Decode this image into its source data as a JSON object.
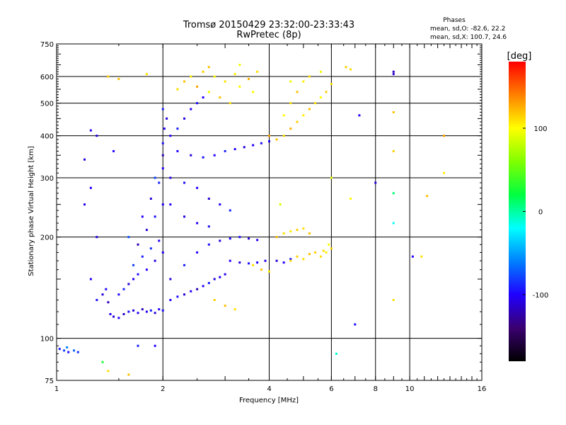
{
  "chart_data": {
    "type": "scatter",
    "title": "Tromsø 20150429 23:32:00-23:33:43",
    "subtitle": "RwPretec (8p)",
    "xlabel": "Frequency [MHz]",
    "ylabel": "Stationary phase Virtual Height [km]",
    "x_scale": "log",
    "y_scale": "log",
    "xlim": [
      1,
      16
    ],
    "ylim": [
      75,
      750
    ],
    "x_ticks": [
      1,
      2,
      4,
      6,
      8,
      10,
      16
    ],
    "y_ticks": [
      75,
      100,
      200,
      300,
      400,
      500,
      600,
      750
    ],
    "grid_x": [
      2,
      4,
      6,
      8,
      10
    ],
    "grid_y": [
      100,
      200,
      300,
      400,
      500,
      600
    ],
    "grid": true,
    "stats": {
      "heading": "Phases",
      "line1": "mean, sd,O: -82.6, 22.2",
      "line2": "mean, sd,X: 100.7, 24.6"
    },
    "colorbar": {
      "label": "[deg]",
      "ticks": [
        100,
        0,
        -100
      ],
      "range": [
        -180,
        180
      ],
      "colors": [
        "#000000",
        "#3a0070",
        "#2000ff",
        "#0080ff",
        "#00ffff",
        "#00ff40",
        "#80ff00",
        "#ffff00",
        "#ff8000",
        "#ff0000"
      ]
    },
    "series": [
      {
        "points": [
          [
            1.02,
            93,
            -90
          ],
          [
            1.05,
            92,
            -80
          ],
          [
            1.08,
            91,
            -95
          ],
          [
            1.12,
            92,
            -70
          ],
          [
            1.15,
            91,
            -85
          ],
          [
            1.07,
            94,
            -60
          ],
          [
            1.35,
            135,
            -110
          ],
          [
            1.38,
            140,
            -100
          ],
          [
            1.4,
            128,
            -120
          ],
          [
            1.42,
            118,
            -105
          ],
          [
            1.45,
            116,
            -110
          ],
          [
            1.5,
            115,
            -100
          ],
          [
            1.55,
            118,
            -115
          ],
          [
            1.6,
            120,
            -95
          ],
          [
            1.65,
            121,
            -110
          ],
          [
            1.7,
            119,
            -100
          ],
          [
            1.75,
            122,
            -120
          ],
          [
            1.8,
            120,
            -105
          ],
          [
            1.85,
            121,
            -90
          ],
          [
            1.9,
            119,
            -110
          ],
          [
            1.95,
            122,
            -100
          ],
          [
            2.0,
            121,
            -95
          ],
          [
            1.5,
            135,
            -100
          ],
          [
            1.55,
            140,
            -90
          ],
          [
            1.6,
            145,
            -110
          ],
          [
            1.65,
            150,
            -100
          ],
          [
            1.7,
            155,
            -95
          ],
          [
            1.8,
            160,
            -100
          ],
          [
            1.9,
            170,
            -110
          ],
          [
            2.0,
            180,
            -100
          ],
          [
            1.75,
            175,
            -90
          ],
          [
            1.85,
            185,
            -85
          ],
          [
            1.95,
            195,
            -100
          ],
          [
            1.65,
            165,
            -80
          ],
          [
            1.7,
            190,
            -120
          ],
          [
            1.8,
            210,
            -110
          ],
          [
            1.9,
            230,
            -95
          ],
          [
            2.0,
            250,
            -100
          ],
          [
            1.6,
            200,
            -75
          ],
          [
            1.75,
            230,
            -100
          ],
          [
            1.85,
            260,
            -110
          ],
          [
            1.95,
            290,
            -90
          ],
          [
            2.0,
            320,
            -100
          ],
          [
            2.0,
            350,
            -120
          ],
          [
            1.9,
            300,
            -80
          ],
          [
            2.0,
            380,
            -95
          ],
          [
            2.02,
            420,
            -100
          ],
          [
            2.05,
            450,
            -110
          ],
          [
            2.0,
            480,
            -90
          ],
          [
            2.1,
            130,
            -100
          ],
          [
            2.2,
            133,
            -95
          ],
          [
            2.3,
            135,
            -110
          ],
          [
            2.4,
            138,
            -100
          ],
          [
            2.5,
            140,
            -120
          ],
          [
            2.6,
            143,
            -100
          ],
          [
            2.7,
            146,
            -90
          ],
          [
            2.8,
            150,
            -110
          ],
          [
            2.9,
            152,
            -100
          ],
          [
            3.0,
            155,
            -105
          ],
          [
            2.1,
            150,
            -110
          ],
          [
            2.3,
            165,
            -90
          ],
          [
            2.5,
            180,
            -100
          ],
          [
            2.7,
            190,
            -95
          ],
          [
            2.9,
            195,
            -110
          ],
          [
            3.1,
            198,
            -100
          ],
          [
            3.3,
            200,
            -95
          ],
          [
            3.5,
            198,
            -110
          ],
          [
            3.7,
            196,
            -100
          ],
          [
            3.1,
            170,
            -100
          ],
          [
            3.3,
            168,
            -110
          ],
          [
            3.5,
            167,
            -95
          ],
          [
            3.7,
            168,
            -100
          ],
          [
            3.9,
            170,
            -105
          ],
          [
            4.2,
            170,
            -110
          ],
          [
            4.4,
            168,
            -100
          ],
          [
            4.6,
            172,
            -95
          ],
          [
            2.2,
            360,
            -100
          ],
          [
            2.4,
            350,
            -110
          ],
          [
            2.6,
            345,
            -95
          ],
          [
            2.8,
            350,
            -100
          ],
          [
            3.0,
            360,
            -90
          ],
          [
            3.2,
            365,
            -100
          ],
          [
            3.4,
            370,
            -110
          ],
          [
            3.6,
            375,
            -100
          ],
          [
            3.8,
            380,
            -95
          ],
          [
            4.0,
            385,
            -100
          ],
          [
            2.1,
            300,
            -105
          ],
          [
            2.3,
            290,
            -95
          ],
          [
            2.5,
            280,
            -100
          ],
          [
            2.7,
            260,
            -110
          ],
          [
            2.9,
            250,
            -100
          ],
          [
            3.1,
            240,
            -90
          ],
          [
            2.1,
            250,
            -100
          ],
          [
            2.3,
            230,
            -110
          ],
          [
            2.5,
            220,
            -100
          ],
          [
            2.7,
            215,
            -95
          ],
          [
            2.1,
            400,
            -100
          ],
          [
            2.2,
            420,
            -90
          ],
          [
            2.3,
            450,
            -110
          ],
          [
            2.4,
            480,
            -100
          ],
          [
            2.5,
            500,
            -95
          ],
          [
            2.6,
            520,
            -100
          ],
          [
            2.2,
            550,
            110
          ],
          [
            2.3,
            580,
            120
          ],
          [
            2.4,
            600,
            105
          ],
          [
            2.6,
            620,
            115
          ],
          [
            2.8,
            600,
            100
          ],
          [
            3.0,
            580,
            110
          ],
          [
            2.5,
            560,
            130
          ],
          [
            2.7,
            540,
            95
          ],
          [
            2.9,
            520,
            120
          ],
          [
            3.1,
            500,
            110
          ],
          [
            3.3,
            560,
            100
          ],
          [
            3.5,
            590,
            125
          ],
          [
            3.7,
            620,
            110
          ],
          [
            3.3,
            650,
            95
          ],
          [
            2.7,
            640,
            120
          ],
          [
            3.2,
            610,
            105
          ],
          [
            3.6,
            540,
            100
          ],
          [
            4.0,
            400,
            130
          ],
          [
            4.2,
            390,
            120
          ],
          [
            4.4,
            400,
            110
          ],
          [
            4.6,
            420,
            125
          ],
          [
            4.8,
            440,
            115
          ],
          [
            5.0,
            460,
            105
          ],
          [
            5.2,
            480,
            120
          ],
          [
            5.4,
            500,
            110
          ],
          [
            5.6,
            520,
            100
          ],
          [
            5.8,
            540,
            115
          ],
          [
            6.0,
            570,
            110
          ],
          [
            5.6,
            620,
            95
          ],
          [
            4.4,
            460,
            100
          ],
          [
            4.6,
            500,
            110
          ],
          [
            4.8,
            540,
            120
          ],
          [
            5.0,
            580,
            105
          ],
          [
            5.2,
            600,
            110
          ],
          [
            4.6,
            580,
            95
          ],
          [
            4.6,
            170,
            110
          ],
          [
            4.8,
            175,
            115
          ],
          [
            5.0,
            172,
            110
          ],
          [
            5.2,
            178,
            120
          ],
          [
            5.4,
            180,
            115
          ],
          [
            5.6,
            175,
            110
          ],
          [
            5.8,
            180,
            105
          ],
          [
            6.0,
            185,
            115
          ],
          [
            5.9,
            190,
            100
          ],
          [
            5.7,
            182,
            110
          ],
          [
            4.2,
            200,
            120
          ],
          [
            4.4,
            205,
            110
          ],
          [
            4.6,
            208,
            105
          ],
          [
            4.8,
            210,
            115
          ],
          [
            5.0,
            212,
            110
          ],
          [
            5.2,
            205,
            120
          ],
          [
            3.6,
            165,
            110
          ],
          [
            3.8,
            160,
            120
          ],
          [
            4.0,
            158,
            105
          ],
          [
            2.8,
            130,
            115
          ],
          [
            3.0,
            125,
            120
          ],
          [
            3.2,
            122,
            110
          ],
          [
            6.6,
            640,
            115
          ],
          [
            6.8,
            630,
            110
          ],
          [
            9.0,
            610,
            -110
          ],
          [
            9.0,
            620,
            -120
          ],
          [
            1.4,
            600,
            115
          ],
          [
            1.5,
            590,
            120
          ],
          [
            1.8,
            610,
            110
          ],
          [
            1.25,
            415,
            -105
          ],
          [
            1.3,
            400,
            -110
          ],
          [
            1.45,
            360,
            -100
          ],
          [
            1.2,
            340,
            -110
          ],
          [
            1.25,
            280,
            -100
          ],
          [
            1.2,
            250,
            -105
          ],
          [
            1.3,
            200,
            -110
          ],
          [
            1.25,
            150,
            -100
          ],
          [
            1.3,
            130,
            -95
          ],
          [
            1.7,
            95,
            -90
          ],
          [
            1.9,
            95,
            -100
          ],
          [
            1.4,
            80,
            110
          ],
          [
            1.6,
            78,
            120
          ],
          [
            1.35,
            85,
            30
          ],
          [
            7.2,
            460,
            -100
          ],
          [
            8.0,
            290,
            -110
          ],
          [
            7.0,
            110,
            -95
          ],
          [
            9.0,
            470,
            120
          ],
          [
            9.0,
            360,
            115
          ],
          [
            9.0,
            270,
            10
          ],
          [
            9.0,
            220,
            -20
          ],
          [
            9.0,
            130,
            110
          ],
          [
            10.2,
            175,
            -100
          ],
          [
            10.8,
            175,
            110
          ],
          [
            11.2,
            265,
            120
          ],
          [
            12.5,
            400,
            130
          ],
          [
            12.5,
            310,
            105
          ],
          [
            6.8,
            260,
            100
          ],
          [
            6.2,
            90,
            -10
          ],
          [
            4.3,
            250,
            90
          ],
          [
            6.0,
            300,
            95
          ]
        ]
      }
    ]
  }
}
